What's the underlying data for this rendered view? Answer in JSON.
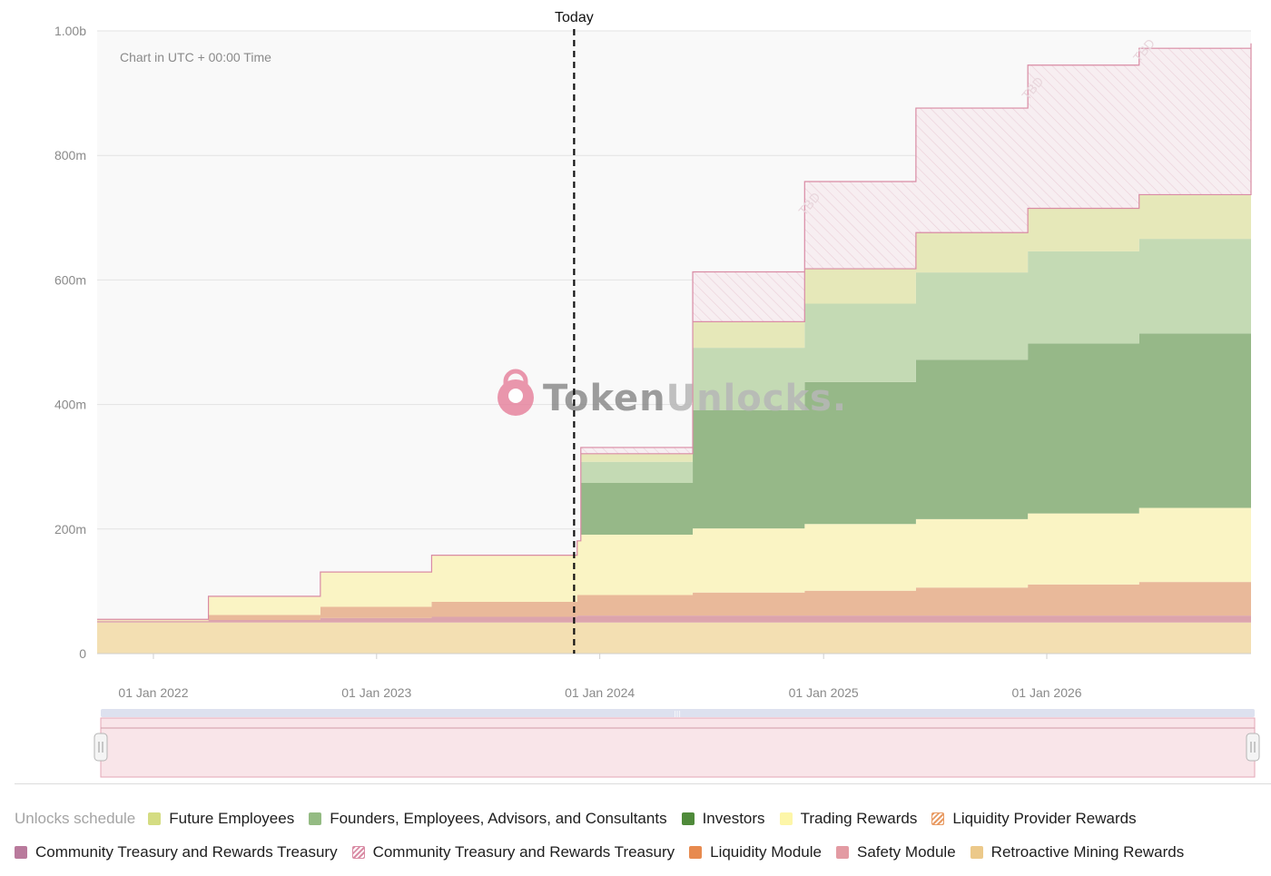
{
  "chart_data": {
    "type": "area",
    "stacked": true,
    "note": "Chart in UTC + 00:00 Time",
    "today_label": "Today",
    "today_x": "2023-11-20",
    "x_range": [
      "2021-10-01",
      "2026-12-01"
    ],
    "ylim": [
      0,
      1000
    ],
    "y_ticks": [
      {
        "value": 0,
        "label": "0"
      },
      {
        "value": 200,
        "label": "200m"
      },
      {
        "value": 400,
        "label": "400m"
      },
      {
        "value": 600,
        "label": "600m"
      },
      {
        "value": 800,
        "label": "800m"
      },
      {
        "value": 1000,
        "label": "1.00b"
      }
    ],
    "x_ticks": [
      {
        "date": "2022-01-01",
        "label": "01 Jan 2022"
      },
      {
        "date": "2023-01-01",
        "label": "01 Jan 2023"
      },
      {
        "date": "2024-01-01",
        "label": "01 Jan 2024"
      },
      {
        "date": "2025-01-01",
        "label": "01 Jan 2025"
      },
      {
        "date": "2026-01-01",
        "label": "01 Jan 2026"
      }
    ],
    "grid": true,
    "x": [
      "2021-10-01",
      "2022-04-01",
      "2022-10-01",
      "2023-04-01",
      "2023-11-25",
      "2023-12-01",
      "2024-06-01",
      "2024-12-01",
      "2025-06-01",
      "2025-12-01",
      "2026-06-01",
      "2026-12-01"
    ],
    "series": [
      {
        "name": "Retroactive Mining Rewards",
        "color": "#f3dfb2",
        "values": [
          50,
          50,
          50,
          50,
          50,
          50,
          50,
          50,
          50,
          50,
          50,
          50
        ]
      },
      {
        "name": "Safety Module",
        "color": "#dca4ad",
        "values": [
          2,
          4,
          7,
          9,
          11,
          11,
          11,
          11,
          11,
          11,
          11,
          11
        ]
      },
      {
        "name": "Liquidity Module",
        "color": "#e9b99a",
        "values": [
          1,
          8,
          18,
          24,
          33,
          33,
          37,
          40,
          45,
          50,
          54,
          58
        ]
      },
      {
        "name": "Trading Rewards",
        "color": "#faf4c4",
        "values": [
          2,
          30,
          56,
          75,
          87,
          97,
          103,
          107,
          110,
          114,
          119,
          123
        ]
      },
      {
        "name": "Investors",
        "color": "#96b888",
        "values": [
          0,
          0,
          0,
          0,
          0,
          83,
          190,
          228,
          256,
          273,
          280,
          282
        ]
      },
      {
        "name": "Founders, Employees, Advisors, and Consultants",
        "color": "#c4dab4",
        "values": [
          0,
          0,
          0,
          0,
          0,
          34,
          100,
          126,
          140,
          148,
          152,
          152
        ]
      },
      {
        "name": "Future Employees",
        "color": "#e6e8b9",
        "values": [
          0,
          0,
          0,
          0,
          0,
          13,
          42,
          56,
          64,
          69,
          71,
          71
        ]
      },
      {
        "name": "Community Treasury and Rewards Treasury",
        "color": "#d98ba4",
        "hatched": true,
        "label": "TBD",
        "values": [
          0,
          0,
          0,
          0,
          0,
          10,
          80,
          140,
          200,
          230,
          235,
          233
        ]
      }
    ]
  },
  "watermark": {
    "part1": "Token",
    "part2": "Unlocks."
  },
  "legend": {
    "title": "Unlocks schedule",
    "items": [
      {
        "label": "Future Employees",
        "color": "#d4dc82",
        "hatched": false
      },
      {
        "label": "Founders, Employees, Advisors, and Consultants",
        "color": "#94bb83",
        "hatched": false
      },
      {
        "label": "Investors",
        "color": "#4f8a3a",
        "hatched": false
      },
      {
        "label": "Trading Rewards",
        "color": "#fdf6a8",
        "hatched": false
      },
      {
        "label": "Liquidity Provider Rewards",
        "color": "#e89a62",
        "hatched": true
      },
      {
        "label": "Community Treasury and Rewards Treasury",
        "color": "#b97a9c",
        "hatched": false
      },
      {
        "label": "Community Treasury and Rewards Treasury",
        "color": "#d98ba4",
        "hatched": true
      },
      {
        "label": "Liquidity Module",
        "color": "#e78a4f",
        "hatched": false
      },
      {
        "label": "Safety Module",
        "color": "#e39ba3",
        "hatched": false
      },
      {
        "label": "Retroactive Mining Rewards",
        "color": "#ecc98a",
        "hatched": false
      }
    ]
  }
}
